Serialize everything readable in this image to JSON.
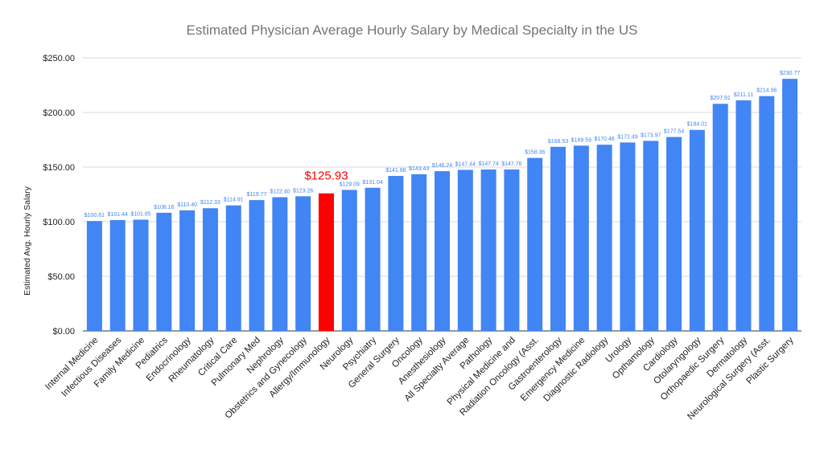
{
  "chart_data": {
    "type": "bar",
    "title": "Estimated Physician Average Hourly Salary by Medical Specialty in the US",
    "xlabel": "",
    "ylabel": "Estimated Avg. Hourly Salary",
    "ylim": [
      0,
      250
    ],
    "yticks": [
      "$0.00",
      "$50.00",
      "$100.00",
      "$150.00",
      "$200.00",
      "$250.00"
    ],
    "grid": true,
    "legend": "none",
    "bar_color": "#4285f4",
    "highlight_color": "#ff0000",
    "highlight_index": 10,
    "categories": [
      "Internal Medicine",
      "Infectious Diseases",
      "Family Medicine",
      "Pediatrics",
      "Endocrinology",
      "Rheumatology",
      "Critical Care",
      "Pulmonary Med",
      "Nephrology",
      "Obstetrics and Gynecology",
      "Allergy/Immunology",
      "Neurology",
      "Psychiatry",
      "General Surgery",
      "Oncology",
      "Anesthesiology",
      "All Specialty Average",
      "Pathology",
      "Physical Medicine and",
      "Radiation Oncology (Asst.",
      "Gastroenterology",
      "Emergency Medicine",
      "Diagnostic Radiology",
      "Urology",
      "Opthamology",
      "Cardiology",
      "Otolaryngology",
      "Orthopaedic Surgery",
      "Dermatology",
      "Neurological Surgery (Asst.",
      "Plastic Surgery"
    ],
    "values": [
      100.61,
      101.44,
      101.85,
      108.16,
      110.4,
      112.33,
      114.91,
      119.77,
      122.4,
      123.26,
      125.93,
      129.09,
      131.04,
      141.88,
      143.43,
      146.24,
      147.44,
      147.74,
      147.76,
      158.36,
      168.53,
      169.59,
      170.46,
      172.49,
      173.97,
      177.54,
      184.01,
      207.91,
      211.11,
      214.96,
      230.77
    ],
    "data_labels": [
      "$100.61",
      "$101.44",
      "$101.85",
      "$108.16",
      "$110.40",
      "$112.33",
      "$114.91",
      "$119.77",
      "$122.40",
      "$123.26",
      "$125.93",
      "$129.09",
      "$131.04",
      "$141.88",
      "$143.43",
      "$146.24",
      "$147.44",
      "$147.74",
      "$147.76",
      "$158.36",
      "$168.53",
      "$169.59",
      "$170.46",
      "$172.49",
      "$173.97",
      "$177.54",
      "$184.01",
      "$207.91",
      "$211.11",
      "$214.96",
      "$230.77"
    ]
  }
}
